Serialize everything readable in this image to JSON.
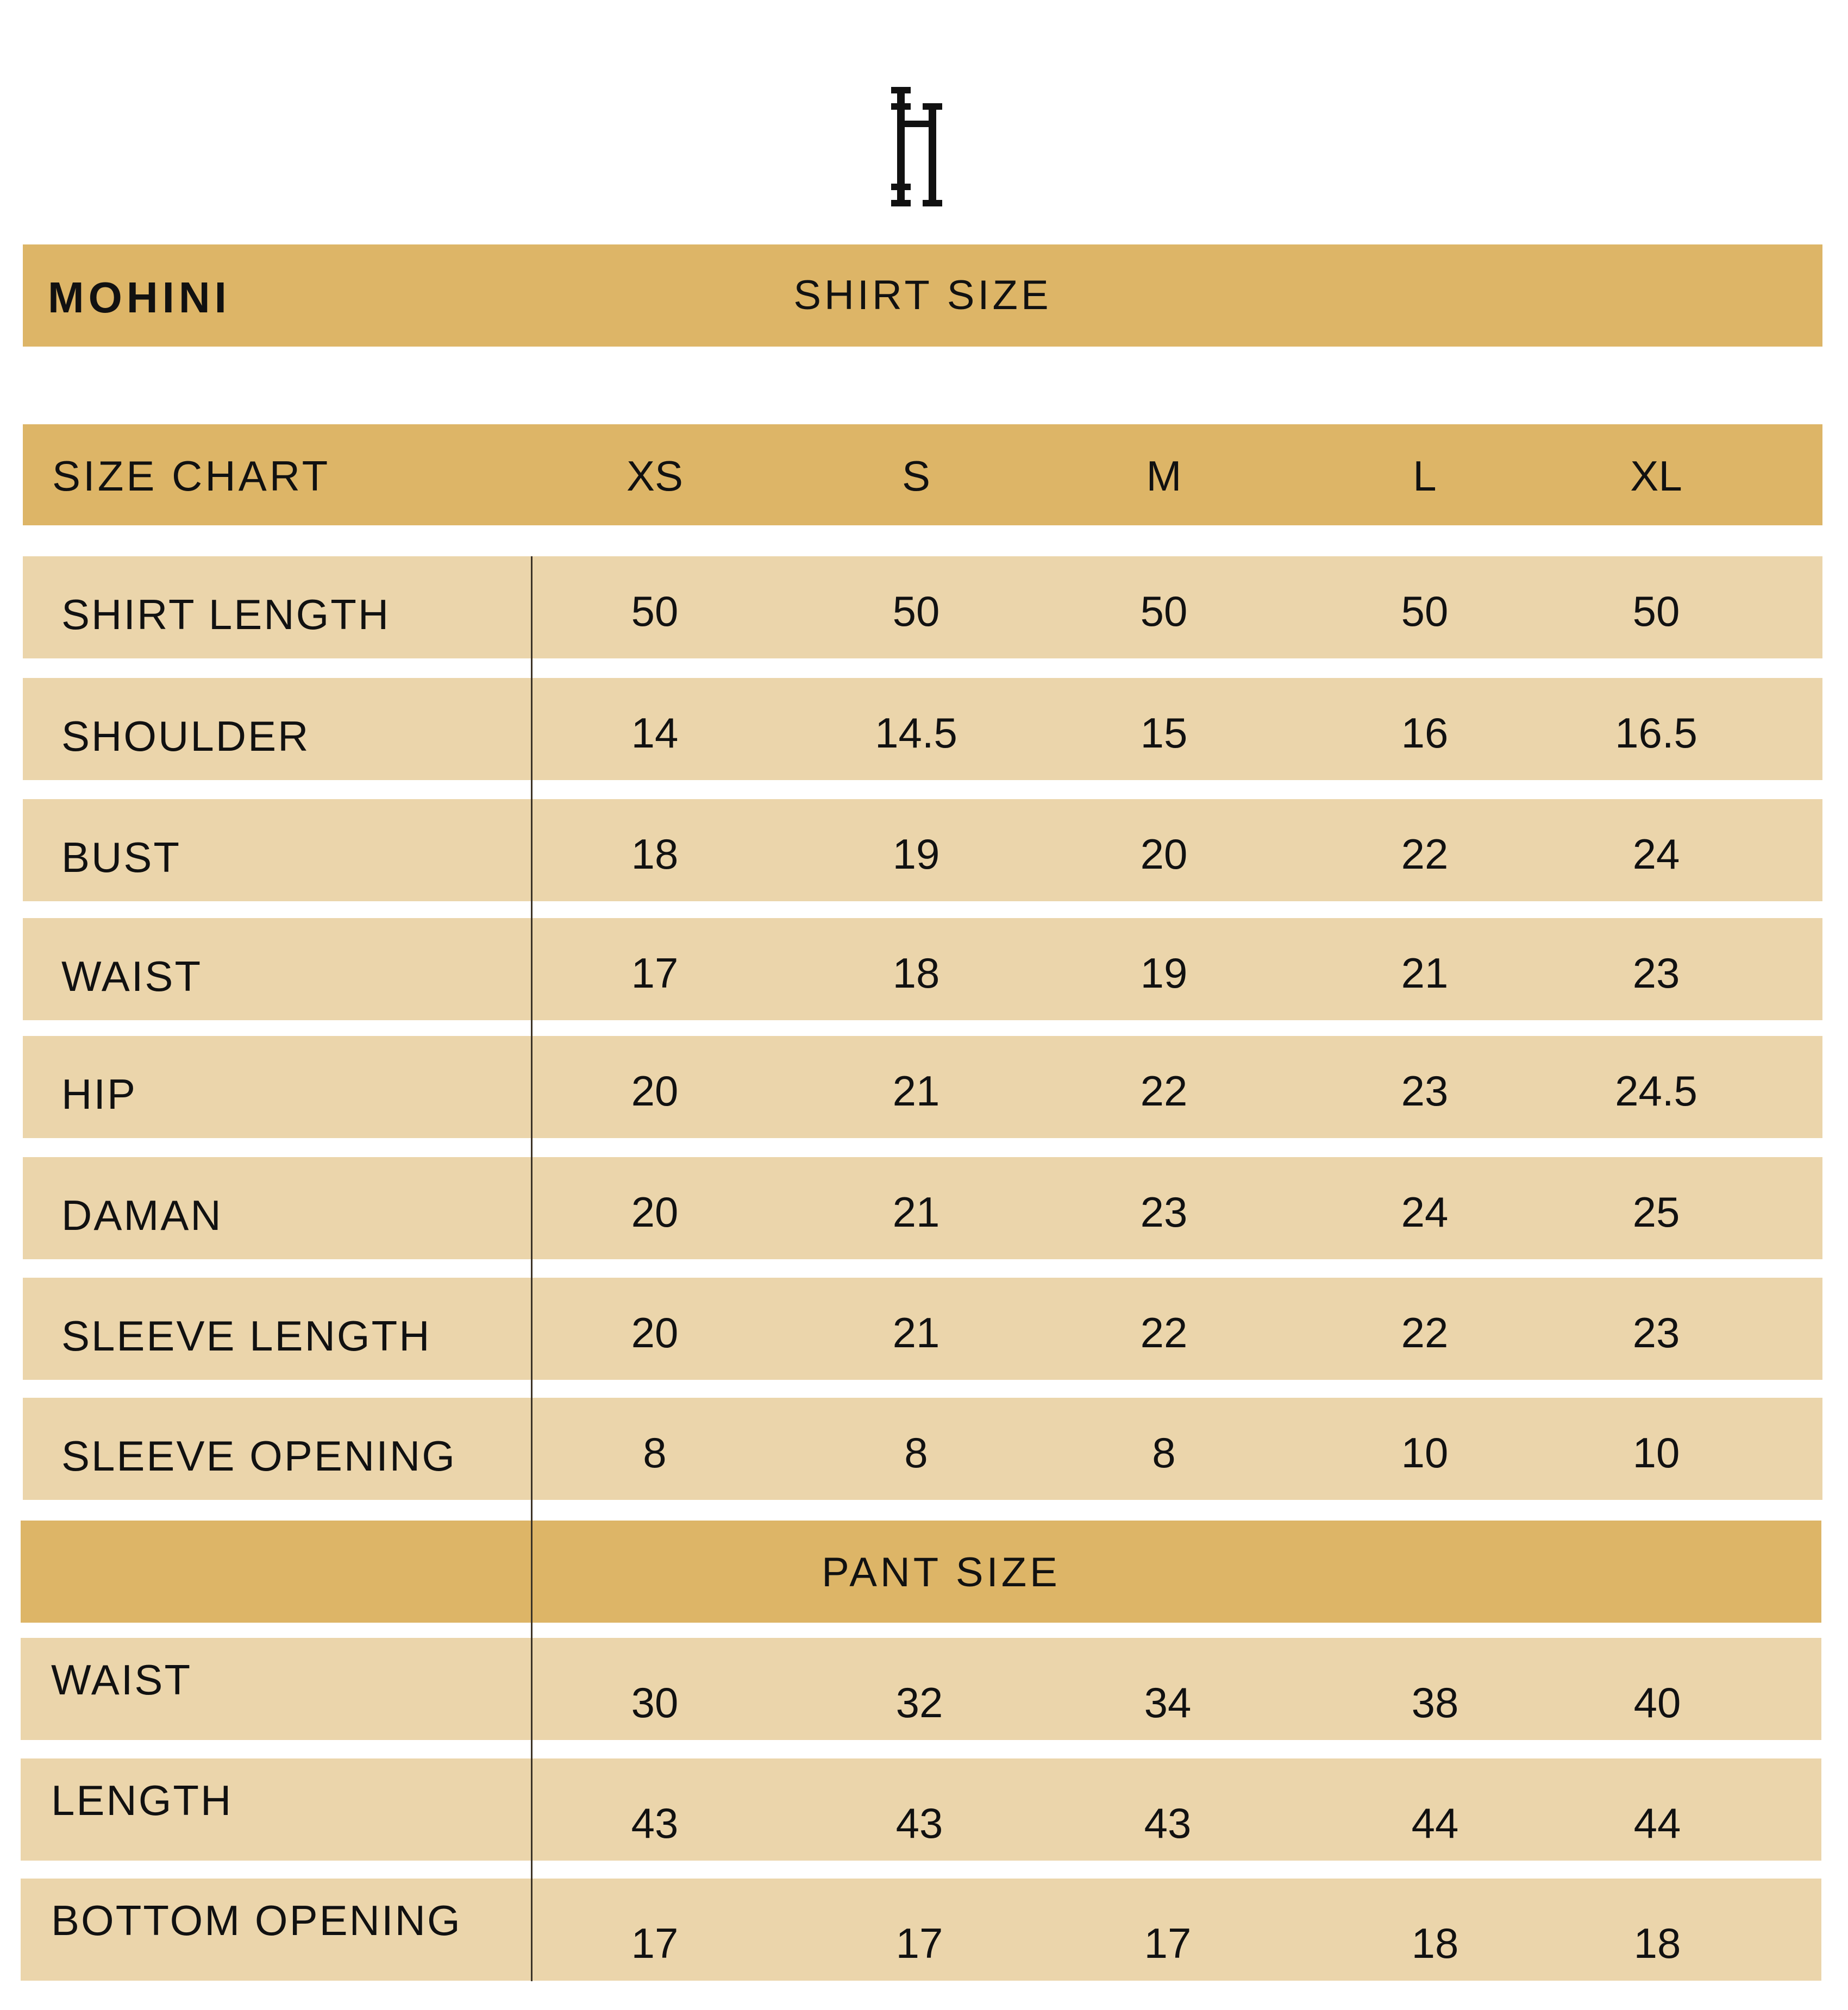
{
  "brand": {
    "logo_letter": "H"
  },
  "header": {
    "collection": "MOHINI",
    "section": "SHIRT SIZE"
  },
  "size_header": {
    "label": "SIZE CHART",
    "sizes": [
      "XS",
      "S",
      "M",
      "L",
      "XL"
    ]
  },
  "shirt_rows": [
    {
      "label": "SHIRT LENGTH",
      "values": [
        "50",
        "50",
        "50",
        "50",
        "50"
      ]
    },
    {
      "label": "SHOULDER",
      "values": [
        "14",
        "14.5",
        "15",
        "16",
        "16.5"
      ]
    },
    {
      "label": "BUST",
      "values": [
        "18",
        "19",
        "20",
        "22",
        "24"
      ]
    },
    {
      "label": "WAIST",
      "values": [
        "17",
        "18",
        "19",
        "21",
        "23"
      ]
    },
    {
      "label": "HIP",
      "values": [
        "20",
        "21",
        "22",
        "23",
        "24.5"
      ]
    },
    {
      "label": "DAMAN",
      "values": [
        "20",
        "21",
        "23",
        "24",
        "25"
      ]
    },
    {
      "label": "SLEEVE LENGTH",
      "values": [
        "20",
        "21",
        "22",
        "22",
        "23"
      ]
    },
    {
      "label": "SLEEVE OPENING",
      "values": [
        "8",
        "8",
        "8",
        "10",
        "10"
      ]
    }
  ],
  "pant_header": {
    "label": "PANT SIZE"
  },
  "pant_rows": [
    {
      "label": "WAIST",
      "values": [
        "30",
        "32",
        "34",
        "38",
        "40"
      ]
    },
    {
      "label": "LENGTH",
      "values": [
        "43",
        "43",
        "43",
        "44",
        "44"
      ]
    },
    {
      "label": "BOTTOM OPENING",
      "values": [
        "17",
        "17",
        "17",
        "18",
        "18"
      ]
    }
  ],
  "colors": {
    "header_gold": "#DDB567",
    "row_beige": "#EBD5AB",
    "text": "#111111"
  }
}
